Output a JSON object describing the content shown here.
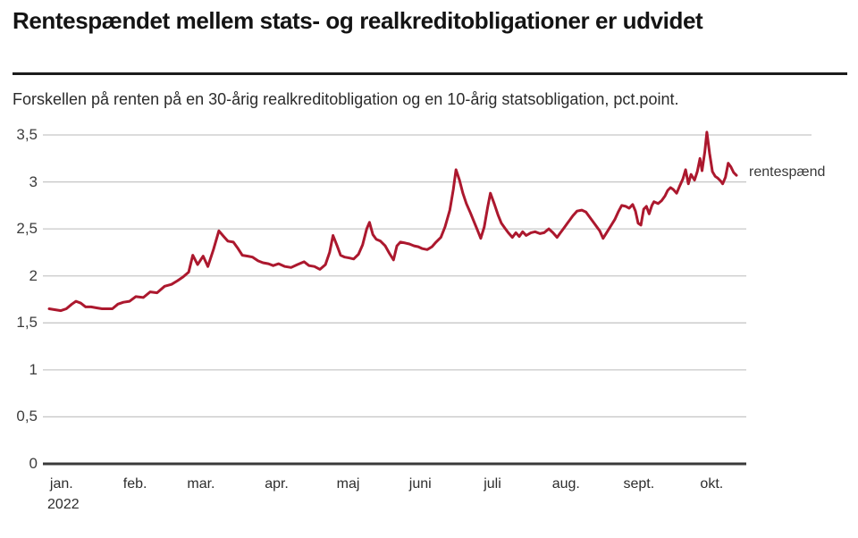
{
  "chart_data": {
    "type": "line",
    "title": "Rentespændet mellem stats- og realkreditobligationer er udvidet",
    "subtitle": "Forskellen på renten på en 30-årig realkreditobligation og en 10-årig statsobligation, pct.point.",
    "unit": "pct.point",
    "grid": "horizontal",
    "legend": {
      "label": "rentespænd",
      "position": "right-of-line-end"
    },
    "colors": {
      "line": "#AC182E",
      "grid": "#C8C8C8",
      "axis": "#3A3A3A"
    },
    "y_axis": {
      "range": [
        0,
        3.62
      ],
      "ticks": [
        {
          "value": 0,
          "label": "0"
        },
        {
          "value": 0.5,
          "label": "0,5"
        },
        {
          "value": 1,
          "label": "1"
        },
        {
          "value": 1.5,
          "label": "1,5"
        },
        {
          "value": 2,
          "label": "2"
        },
        {
          "value": 2.5,
          "label": "2,5"
        },
        {
          "value": 3,
          "label": "3"
        },
        {
          "value": 3.5,
          "label": "3,5"
        }
      ]
    },
    "x_axis": {
      "ticks": [
        {
          "label": "jan.",
          "sublabel": "2022",
          "pos": 0.018
        },
        {
          "label": "feb.",
          "pos": 0.125
        },
        {
          "label": "mar.",
          "pos": 0.221
        },
        {
          "label": "apr.",
          "pos": 0.331
        },
        {
          "label": "maj",
          "pos": 0.435
        },
        {
          "label": "juni",
          "pos": 0.54
        },
        {
          "label": "juli",
          "pos": 0.645
        },
        {
          "label": "aug.",
          "pos": 0.752
        },
        {
          "label": "sept.",
          "pos": 0.858
        },
        {
          "label": "okt.",
          "pos": 0.964
        }
      ]
    },
    "series": [
      {
        "name": "rentespænd",
        "color": "#AC182E",
        "points": [
          [
            0.0,
            1.65
          ],
          [
            0.009,
            1.64
          ],
          [
            0.017,
            1.63
          ],
          [
            0.025,
            1.65
          ],
          [
            0.033,
            1.7
          ],
          [
            0.039,
            1.73
          ],
          [
            0.046,
            1.71
          ],
          [
            0.053,
            1.67
          ],
          [
            0.061,
            1.67
          ],
          [
            0.069,
            1.66
          ],
          [
            0.077,
            1.65
          ],
          [
            0.085,
            1.65
          ],
          [
            0.092,
            1.65
          ],
          [
            0.1,
            1.7
          ],
          [
            0.108,
            1.72
          ],
          [
            0.117,
            1.73
          ],
          [
            0.126,
            1.78
          ],
          [
            0.137,
            1.77
          ],
          [
            0.147,
            1.83
          ],
          [
            0.157,
            1.82
          ],
          [
            0.168,
            1.89
          ],
          [
            0.178,
            1.91
          ],
          [
            0.187,
            1.95
          ],
          [
            0.195,
            1.99
          ],
          [
            0.203,
            2.04
          ],
          [
            0.209,
            2.22
          ],
          [
            0.216,
            2.12
          ],
          [
            0.224,
            2.21
          ],
          [
            0.231,
            2.1
          ],
          [
            0.239,
            2.28
          ],
          [
            0.247,
            2.48
          ],
          [
            0.254,
            2.42
          ],
          [
            0.26,
            2.37
          ],
          [
            0.268,
            2.36
          ],
          [
            0.274,
            2.3
          ],
          [
            0.281,
            2.22
          ],
          [
            0.289,
            2.21
          ],
          [
            0.296,
            2.2
          ],
          [
            0.304,
            2.16
          ],
          [
            0.311,
            2.14
          ],
          [
            0.319,
            2.13
          ],
          [
            0.326,
            2.11
          ],
          [
            0.334,
            2.13
          ],
          [
            0.343,
            2.1
          ],
          [
            0.352,
            2.09
          ],
          [
            0.361,
            2.12
          ],
          [
            0.371,
            2.15
          ],
          [
            0.378,
            2.11
          ],
          [
            0.386,
            2.1
          ],
          [
            0.394,
            2.07
          ],
          [
            0.402,
            2.12
          ],
          [
            0.408,
            2.25
          ],
          [
            0.413,
            2.43
          ],
          [
            0.419,
            2.32
          ],
          [
            0.424,
            2.22
          ],
          [
            0.43,
            2.2
          ],
          [
            0.437,
            2.19
          ],
          [
            0.443,
            2.18
          ],
          [
            0.45,
            2.23
          ],
          [
            0.456,
            2.33
          ],
          [
            0.462,
            2.5
          ],
          [
            0.466,
            2.57
          ],
          [
            0.471,
            2.44
          ],
          [
            0.476,
            2.39
          ],
          [
            0.482,
            2.37
          ],
          [
            0.489,
            2.32
          ],
          [
            0.495,
            2.24
          ],
          [
            0.501,
            2.17
          ],
          [
            0.506,
            2.32
          ],
          [
            0.511,
            2.36
          ],
          [
            0.518,
            2.35
          ],
          [
            0.524,
            2.34
          ],
          [
            0.531,
            2.32
          ],
          [
            0.537,
            2.31
          ],
          [
            0.543,
            2.29
          ],
          [
            0.55,
            2.28
          ],
          [
            0.557,
            2.31
          ],
          [
            0.563,
            2.36
          ],
          [
            0.57,
            2.41
          ],
          [
            0.576,
            2.52
          ],
          [
            0.583,
            2.7
          ],
          [
            0.588,
            2.92
          ],
          [
            0.592,
            3.13
          ],
          [
            0.597,
            3.02
          ],
          [
            0.602,
            2.88
          ],
          [
            0.607,
            2.77
          ],
          [
            0.613,
            2.67
          ],
          [
            0.618,
            2.58
          ],
          [
            0.623,
            2.49
          ],
          [
            0.628,
            2.4
          ],
          [
            0.633,
            2.52
          ],
          [
            0.638,
            2.73
          ],
          [
            0.642,
            2.88
          ],
          [
            0.648,
            2.76
          ],
          [
            0.653,
            2.65
          ],
          [
            0.658,
            2.56
          ],
          [
            0.663,
            2.51
          ],
          [
            0.668,
            2.46
          ],
          [
            0.674,
            2.41
          ],
          [
            0.679,
            2.46
          ],
          [
            0.684,
            2.42
          ],
          [
            0.689,
            2.47
          ],
          [
            0.694,
            2.43
          ],
          [
            0.701,
            2.46
          ],
          [
            0.707,
            2.47
          ],
          [
            0.714,
            2.45
          ],
          [
            0.72,
            2.46
          ],
          [
            0.727,
            2.5
          ],
          [
            0.733,
            2.46
          ],
          [
            0.739,
            2.41
          ],
          [
            0.744,
            2.46
          ],
          [
            0.749,
            2.51
          ],
          [
            0.755,
            2.57
          ],
          [
            0.762,
            2.64
          ],
          [
            0.768,
            2.69
          ],
          [
            0.775,
            2.7
          ],
          [
            0.781,
            2.68
          ],
          [
            0.788,
            2.61
          ],
          [
            0.794,
            2.55
          ],
          [
            0.801,
            2.48
          ],
          [
            0.806,
            2.4
          ],
          [
            0.811,
            2.46
          ],
          [
            0.817,
            2.53
          ],
          [
            0.823,
            2.6
          ],
          [
            0.828,
            2.68
          ],
          [
            0.833,
            2.75
          ],
          [
            0.839,
            2.74
          ],
          [
            0.844,
            2.72
          ],
          [
            0.849,
            2.76
          ],
          [
            0.853,
            2.69
          ],
          [
            0.857,
            2.56
          ],
          [
            0.861,
            2.54
          ],
          [
            0.865,
            2.71
          ],
          [
            0.869,
            2.74
          ],
          [
            0.873,
            2.66
          ],
          [
            0.877,
            2.75
          ],
          [
            0.88,
            2.79
          ],
          [
            0.886,
            2.77
          ],
          [
            0.891,
            2.8
          ],
          [
            0.896,
            2.85
          ],
          [
            0.9,
            2.91
          ],
          [
            0.904,
            2.94
          ],
          [
            0.908,
            2.92
          ],
          [
            0.913,
            2.88
          ],
          [
            0.917,
            2.95
          ],
          [
            0.922,
            3.03
          ],
          [
            0.926,
            3.13
          ],
          [
            0.93,
            2.98
          ],
          [
            0.934,
            3.08
          ],
          [
            0.939,
            3.02
          ],
          [
            0.943,
            3.11
          ],
          [
            0.947,
            3.25
          ],
          [
            0.95,
            3.12
          ],
          [
            0.954,
            3.32
          ],
          [
            0.957,
            3.53
          ],
          [
            0.961,
            3.3
          ],
          [
            0.965,
            3.11
          ],
          [
            0.969,
            3.06
          ],
          [
            0.973,
            3.04
          ],
          [
            0.977,
            3.01
          ],
          [
            0.98,
            2.98
          ],
          [
            0.984,
            3.05
          ],
          [
            0.988,
            3.2
          ],
          [
            0.992,
            3.16
          ],
          [
            0.996,
            3.1
          ],
          [
            1.0,
            3.07
          ]
        ]
      }
    ]
  }
}
